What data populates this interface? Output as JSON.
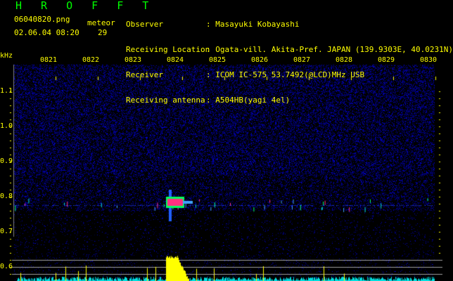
{
  "app_title": "H R O F F T",
  "file_name": "06040820.png",
  "datetime": "02.06.04 08:20",
  "meteor_label": "meteor",
  "meteor_count": "29",
  "info": [
    {
      "label": "Observer",
      "value": ": Masayuki Kobayashi"
    },
    {
      "label": "Receiving Location",
      "value": ": Ogata-vill. Akita-Pref. JAPAN (139.9303E, 40.0231N)"
    },
    {
      "label": "Receiver",
      "value": ": ICOM IC-575 53.7492(@LCD)MHz USB"
    },
    {
      "label": "Receiving antenna",
      "value": ": A504HB(yagi 4el)"
    }
  ],
  "freq_unit": "kHz",
  "time_labels": [
    "0821",
    "0822",
    "0823",
    "0824",
    "0825",
    "0826",
    "0827",
    "0828",
    "0829",
    "0830"
  ],
  "freq_labels": [
    "1.1",
    "1.0",
    "0.9",
    "0.8",
    "0.7",
    "0.6"
  ],
  "colors": {
    "text": "#ffff00",
    "title": "#00ff00",
    "noise": "#0000c0",
    "echo": "#ff3080",
    "bars_low": "#00e0e0",
    "bars_high": "#ffff00",
    "lines": "#a0a0a0"
  }
}
